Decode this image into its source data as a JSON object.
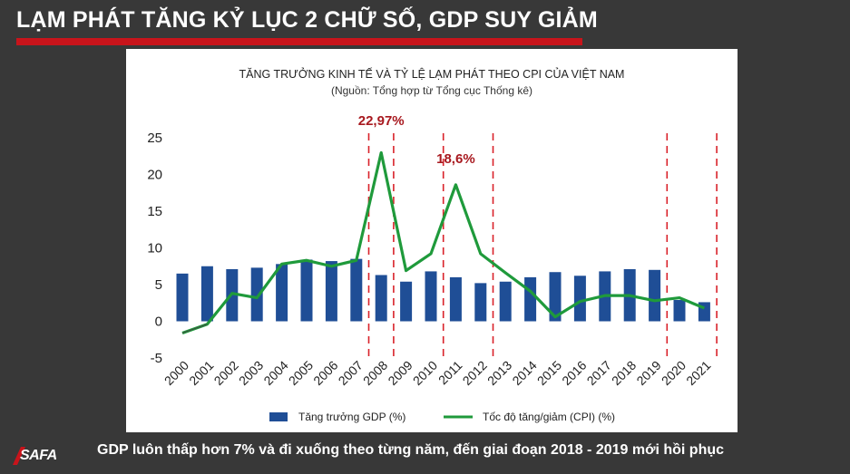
{
  "header": {
    "headline": "LẠM PHÁT TĂNG KỶ LỤC 2 CHỮ SỐ, GDP SUY GIẢM"
  },
  "footer": {
    "caption": "GDP luôn thấp hơn 7% và đi xuống theo từng năm, đến giai đoạn 2018 - 2019 mới hồi phục",
    "logo_text": "SAFA"
  },
  "colors": {
    "background": "#383838",
    "accent_red": "#c8141b",
    "bar_blue": "#1f4e96",
    "line_green": "#1f9a3b",
    "marker_red": "#d9222a",
    "annotation_red": "#a8191f"
  },
  "chart_data": {
    "type": "bar",
    "title": "TĂNG TRƯỞNG KINH TẾ VÀ TỶ LỆ LẠM PHÁT THEO CPI CỦA VIỆT NAM",
    "subtitle": "(Nguồn: Tổng hợp từ Tổng cục Thống kê)",
    "categories": [
      "2000",
      "2001",
      "2002",
      "2003",
      "2004",
      "2005",
      "2006",
      "2007",
      "2008",
      "2009",
      "2010",
      "2011",
      "2012",
      "2013",
      "2014",
      "2015",
      "2016",
      "2017",
      "2018",
      "2019",
      "2020",
      "2021"
    ],
    "series": [
      {
        "name": "Tăng trưởng GDP (%)",
        "kind": "bar",
        "values": [
          6.5,
          7.5,
          7.1,
          7.3,
          7.8,
          8.4,
          8.2,
          8.5,
          6.3,
          5.4,
          6.8,
          6.0,
          5.2,
          5.4,
          6.0,
          6.7,
          6.2,
          6.8,
          7.1,
          7.0,
          2.9,
          2.6
        ]
      },
      {
        "name": "Tốc độ tăng/giảm (CPI) (%)",
        "kind": "line",
        "values": [
          -1.6,
          -0.4,
          3.8,
          3.2,
          7.8,
          8.3,
          7.5,
          8.3,
          22.97,
          6.9,
          9.2,
          18.6,
          9.2,
          6.6,
          4.1,
          0.6,
          2.7,
          3.5,
          3.5,
          2.8,
          3.2,
          1.8
        ]
      }
    ],
    "yticks": [
      -5,
      0,
      5,
      10,
      15,
      20,
      25
    ],
    "ylim": [
      -5,
      25
    ],
    "grid": false,
    "legend": "bottom",
    "marker_lines_between": [
      [
        "2007",
        "2008"
      ],
      [
        "2008",
        "2009"
      ],
      [
        "2010",
        "2011"
      ],
      [
        "2012",
        "2013"
      ],
      [
        "2019",
        "2020"
      ],
      [
        "2021",
        null
      ]
    ],
    "annotations": [
      {
        "text": "22,97%",
        "category": "2008"
      },
      {
        "text": "18,6%",
        "category": "2011"
      }
    ]
  }
}
